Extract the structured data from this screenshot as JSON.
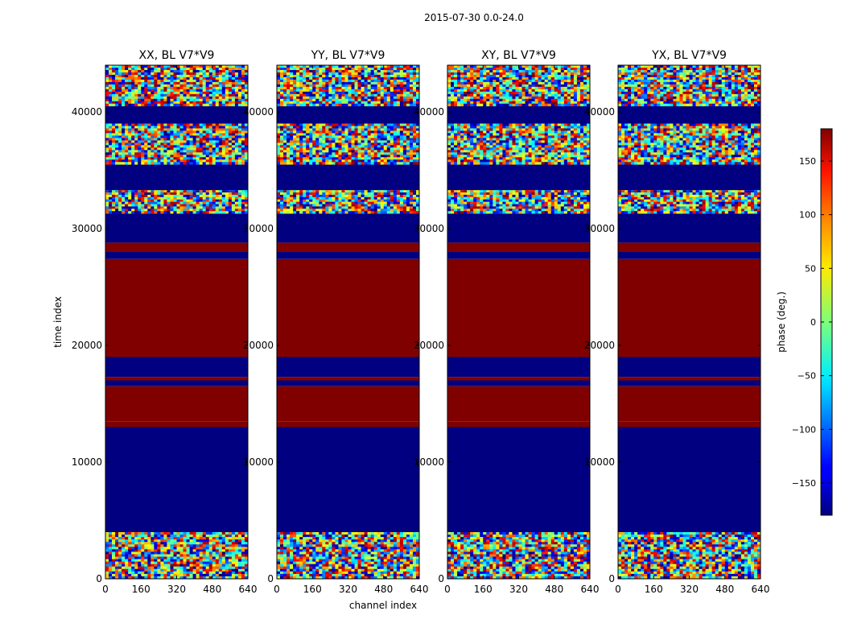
{
  "chart_data": {
    "type": "heatmap",
    "title": "2015-07-30 0.0-24.0",
    "xlabel": "channel index",
    "ylabel": "time index",
    "xlim": [
      0,
      640
    ],
    "ylim": [
      0,
      44000
    ],
    "xticks": [
      0,
      160,
      320,
      480,
      640
    ],
    "yticks": [
      0,
      10000,
      20000,
      30000,
      40000
    ],
    "xtick_labels": [
      "0",
      "160",
      "320",
      "480",
      "640"
    ],
    "ytick_labels": [
      "0",
      "10000",
      "20000",
      "30000",
      "40000"
    ],
    "colorbar": {
      "label": "phase (deg.)",
      "range": [
        -180,
        180
      ],
      "ticks": [
        150,
        100,
        50,
        0,
        -50,
        -100,
        -150
      ],
      "tick_labels": [
        "150",
        "100",
        "50",
        "0",
        "−50",
        "−100",
        "−150"
      ],
      "colormap": "jet"
    },
    "panels": [
      {
        "title": "XX, BL V7*V9"
      },
      {
        "title": "YY, BL V7*V9"
      },
      {
        "title": "XY, BL V7*V9"
      },
      {
        "title": "YX, BL V7*V9"
      }
    ],
    "bands": [
      {
        "t0": 0,
        "t1": 4000,
        "phase": null
      },
      {
        "t0": 4000,
        "t1": 13000,
        "phase": -180
      },
      {
        "t0": 13000,
        "t1": 13500,
        "phase": 180
      },
      {
        "t0": 13500,
        "t1": 16500,
        "phase": 180
      },
      {
        "t0": 16500,
        "t1": 17000,
        "phase": -180
      },
      {
        "t0": 17000,
        "t1": 17300,
        "phase": 180
      },
      {
        "t0": 17300,
        "t1": 19000,
        "phase": -180
      },
      {
        "t0": 19000,
        "t1": 27000,
        "phase": 180
      },
      {
        "t0": 27000,
        "t1": 27400,
        "phase": 180
      },
      {
        "t0": 27400,
        "t1": 28000,
        "phase": -180
      },
      {
        "t0": 28000,
        "t1": 28800,
        "phase": 180
      },
      {
        "t0": 28800,
        "t1": 31300,
        "phase": -180
      },
      {
        "t0": 31300,
        "t1": 33300,
        "phase": null
      },
      {
        "t0": 33300,
        "t1": 35500,
        "phase": -180
      },
      {
        "t0": 35500,
        "t1": 39000,
        "phase": null
      },
      {
        "t0": 39000,
        "t1": 40500,
        "phase": -180
      },
      {
        "t0": 40500,
        "t1": 44000,
        "phase": null
      }
    ]
  }
}
